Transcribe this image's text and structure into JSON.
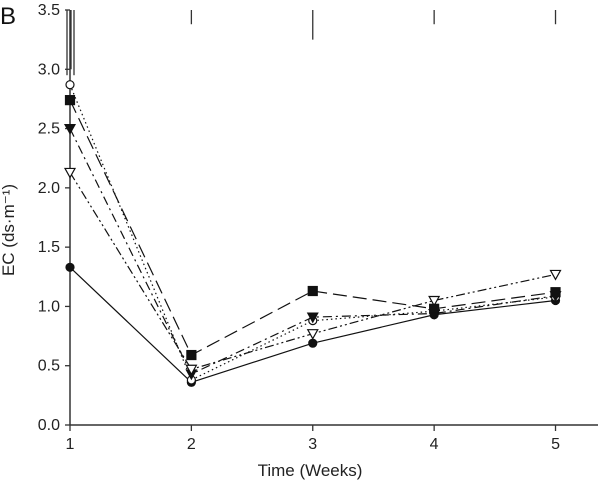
{
  "panel_label": "B",
  "chart_data": {
    "type": "line",
    "title": "",
    "xlabel": "Time (Weeks)",
    "ylabel": "EC (ds·m⁻¹)",
    "x": [
      1,
      2,
      3,
      4,
      5
    ],
    "x_tick_labels": [
      "1",
      "2",
      "3",
      "4",
      "5"
    ],
    "xlim": [
      1,
      5.35
    ],
    "ylim": [
      0,
      3.5
    ],
    "y_ticks": [
      0.0,
      0.5,
      1.0,
      1.5,
      2.0,
      2.5,
      3.0,
      3.5
    ],
    "y_tick_labels": [
      "0.0",
      "0.5",
      "1.0",
      "1.5",
      "2.0",
      "2.5",
      "3.0",
      "3.5"
    ],
    "grid": false,
    "series": [
      {
        "name": "filled circle",
        "marker": "circle",
        "filled": true,
        "dash": "solid",
        "color": "#111111",
        "values": [
          1.33,
          0.36,
          0.69,
          0.93,
          1.05
        ]
      },
      {
        "name": "open circle",
        "marker": "circle",
        "filled": false,
        "dash": "dotted",
        "color": "#111111",
        "values": [
          2.87,
          0.38,
          0.88,
          0.96,
          1.08
        ]
      },
      {
        "name": "filled triangle",
        "marker": "triangle-down",
        "filled": true,
        "dash": "dash-dot",
        "color": "#111111",
        "values": [
          2.5,
          0.43,
          0.91,
          0.94,
          1.09
        ]
      },
      {
        "name": "open triangle",
        "marker": "triangle-down",
        "filled": false,
        "dash": "dash-dot-dot",
        "color": "#111111",
        "values": [
          2.13,
          0.47,
          0.77,
          1.05,
          1.27
        ]
      },
      {
        "name": "filled square",
        "marker": "square",
        "filled": true,
        "dash": "long-dash",
        "color": "#111111",
        "values": [
          2.74,
          0.59,
          1.13,
          0.98,
          1.12
        ]
      }
    ],
    "error_bars_top": [
      3.5,
      3.5,
      3.5,
      3.5,
      3.5
    ]
  }
}
